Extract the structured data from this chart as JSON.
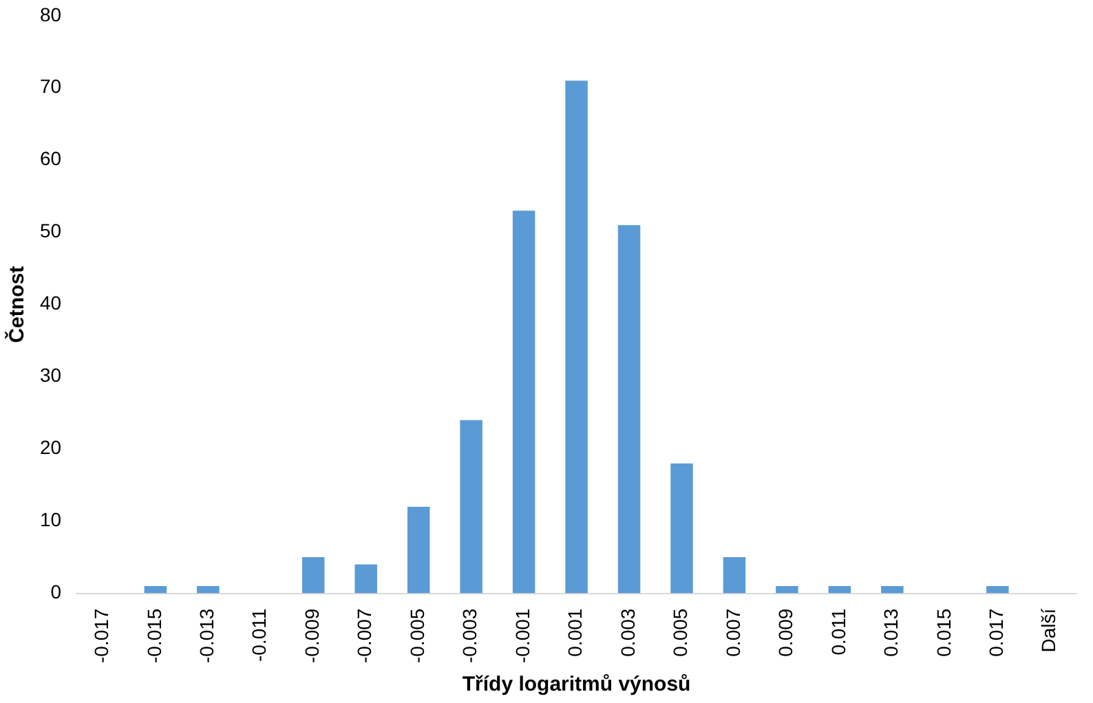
{
  "chart_data": {
    "type": "bar",
    "xlabel": "Třídy logaritmů výnosů",
    "ylabel": "Četnost",
    "categories": [
      "-0.017",
      "-0.015",
      "-0.013",
      "-0.011",
      "-0.009",
      "-0.007",
      "-0.005",
      "-0.003",
      "-0.001",
      "0.001",
      "0.003",
      "0.005",
      "0.007",
      "0.009",
      "0.011",
      "0.013",
      "0.015",
      "0.017",
      "Další"
    ],
    "values": [
      0,
      1,
      1,
      0,
      5,
      4,
      12,
      24,
      53,
      71,
      51,
      18,
      5,
      1,
      1,
      1,
      0,
      1,
      0
    ],
    "color": "#5b9bd5",
    "ylim": [
      0,
      80
    ],
    "yticks": [
      0,
      10,
      20,
      30,
      40,
      50,
      60,
      70,
      80
    ],
    "grid": false,
    "legend": false
  }
}
